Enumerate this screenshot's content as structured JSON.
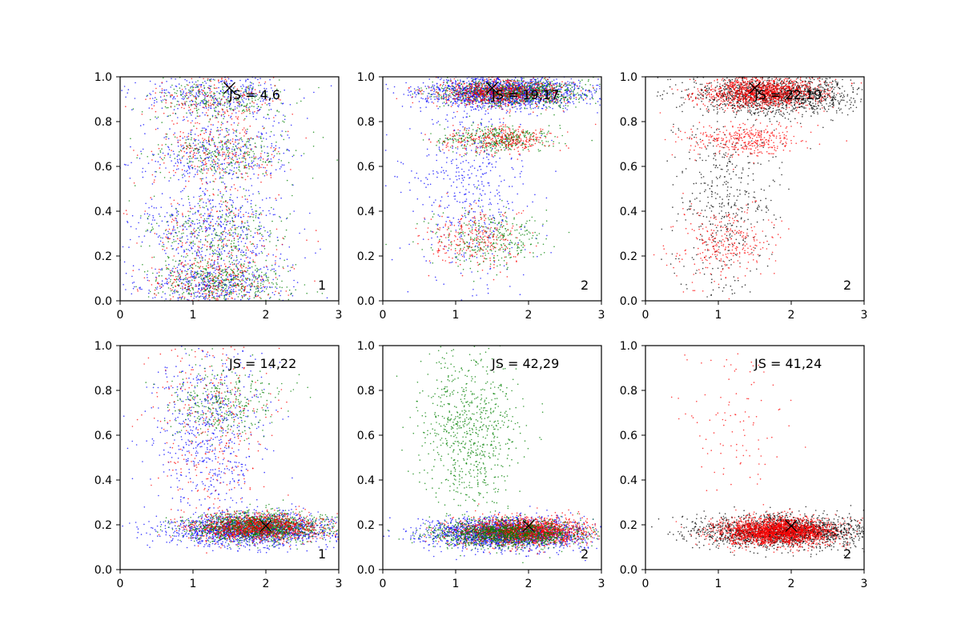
{
  "colors": {
    "blue": "#0000ff",
    "green": "#008000",
    "red": "#ff0000",
    "black": "#000000"
  },
  "chart_data": [
    {
      "type": "scatter",
      "panel": 1,
      "row": 1,
      "col": 1,
      "xlim": [
        0,
        3
      ],
      "ylim": [
        0,
        1.0
      ],
      "x_ticks": [
        "0",
        "1",
        "2",
        "3"
      ],
      "y_ticks": [
        "0.0",
        "0.2",
        "0.4",
        "0.6",
        "0.8",
        "1.0"
      ],
      "annotation": "JS = 4,6",
      "corner_label": "1",
      "marker": {
        "x": 1.5,
        "y": 0.95,
        "symbol": "x"
      },
      "series": [
        {
          "color": "blue",
          "n": 1700,
          "clusters": [
            {
              "cx": 1.3,
              "cy": 0.92,
              "sx": 0.5,
              "sy": 0.06,
              "w": 0.22
            },
            {
              "cx": 1.3,
              "cy": 0.65,
              "sx": 0.5,
              "sy": 0.07,
              "w": 0.22
            },
            {
              "cx": 1.3,
              "cy": 0.32,
              "sx": 0.5,
              "sy": 0.1,
              "w": 0.26
            },
            {
              "cx": 1.3,
              "cy": 0.08,
              "sx": 0.5,
              "sy": 0.06,
              "w": 0.3
            }
          ]
        },
        {
          "color": "green",
          "n": 1300,
          "clusters": [
            {
              "cx": 1.4,
              "cy": 0.9,
              "sx": 0.45,
              "sy": 0.05,
              "w": 0.22
            },
            {
              "cx": 1.4,
              "cy": 0.66,
              "sx": 0.45,
              "sy": 0.06,
              "w": 0.24
            },
            {
              "cx": 1.3,
              "cy": 0.3,
              "sx": 0.45,
              "sy": 0.1,
              "w": 0.22
            },
            {
              "cx": 1.4,
              "cy": 0.08,
              "sx": 0.45,
              "sy": 0.05,
              "w": 0.32
            }
          ]
        },
        {
          "color": "red",
          "n": 900,
          "clusters": [
            {
              "cx": 1.3,
              "cy": 0.9,
              "sx": 0.45,
              "sy": 0.06,
              "w": 0.25
            },
            {
              "cx": 1.3,
              "cy": 0.65,
              "sx": 0.45,
              "sy": 0.07,
              "w": 0.25
            },
            {
              "cx": 1.3,
              "cy": 0.3,
              "sx": 0.45,
              "sy": 0.1,
              "w": 0.2
            },
            {
              "cx": 1.3,
              "cy": 0.08,
              "sx": 0.45,
              "sy": 0.06,
              "w": 0.3
            }
          ]
        }
      ]
    },
    {
      "type": "scatter",
      "panel": 2,
      "row": 1,
      "col": 2,
      "xlim": [
        0,
        3
      ],
      "ylim": [
        0,
        1.0
      ],
      "x_ticks": [
        "0",
        "1",
        "2",
        "3"
      ],
      "y_ticks": [
        "0.0",
        "0.2",
        "0.4",
        "0.6",
        "0.8",
        "1.0"
      ],
      "annotation": "JS = 19,17",
      "corner_label": "2",
      "marker": {
        "x": 1.5,
        "y": 0.95,
        "symbol": "x"
      },
      "series": [
        {
          "color": "blue",
          "n": 2200,
          "clusters": [
            {
              "cx": 1.7,
              "cy": 0.93,
              "sx": 0.55,
              "sy": 0.035,
              "w": 0.8
            },
            {
              "cx": 1.2,
              "cy": 0.5,
              "sx": 0.4,
              "sy": 0.22,
              "w": 0.2
            }
          ]
        },
        {
          "color": "green",
          "n": 1600,
          "clusters": [
            {
              "cx": 1.8,
              "cy": 0.93,
              "sx": 0.5,
              "sy": 0.03,
              "w": 0.55
            },
            {
              "cx": 1.6,
              "cy": 0.72,
              "sx": 0.4,
              "sy": 0.03,
              "w": 0.25
            },
            {
              "cx": 1.5,
              "cy": 0.28,
              "sx": 0.4,
              "sy": 0.06,
              "w": 0.2
            }
          ]
        },
        {
          "color": "red",
          "n": 1300,
          "clusters": [
            {
              "cx": 1.6,
              "cy": 0.93,
              "sx": 0.45,
              "sy": 0.03,
              "w": 0.55
            },
            {
              "cx": 1.6,
              "cy": 0.72,
              "sx": 0.4,
              "sy": 0.03,
              "w": 0.25
            },
            {
              "cx": 1.3,
              "cy": 0.28,
              "sx": 0.35,
              "sy": 0.07,
              "w": 0.2
            }
          ]
        }
      ]
    },
    {
      "type": "scatter",
      "panel": 3,
      "row": 1,
      "col": 3,
      "xlim": [
        0,
        3
      ],
      "ylim": [
        0,
        1.0
      ],
      "x_ticks": [
        "0",
        "1",
        "2",
        "3"
      ],
      "y_ticks": [
        "0.0",
        "0.2",
        "0.4",
        "0.6",
        "0.8",
        "1.0"
      ],
      "annotation": "JS = 22,19",
      "corner_label": "2",
      "marker": {
        "x": 1.5,
        "y": 0.95,
        "symbol": "x"
      },
      "series": [
        {
          "color": "black",
          "n": 1800,
          "clusters": [
            {
              "cx": 1.8,
              "cy": 0.92,
              "sx": 0.6,
              "sy": 0.045,
              "w": 0.75
            },
            {
              "cx": 1.1,
              "cy": 0.45,
              "sx": 0.35,
              "sy": 0.22,
              "w": 0.25
            }
          ]
        },
        {
          "color": "red",
          "n": 1900,
          "clusters": [
            {
              "cx": 1.6,
              "cy": 0.93,
              "sx": 0.4,
              "sy": 0.035,
              "w": 0.65
            },
            {
              "cx": 1.4,
              "cy": 0.72,
              "sx": 0.4,
              "sy": 0.035,
              "w": 0.2
            },
            {
              "cx": 1.1,
              "cy": 0.25,
              "sx": 0.35,
              "sy": 0.08,
              "w": 0.15
            }
          ]
        }
      ]
    },
    {
      "type": "scatter",
      "panel": 4,
      "row": 2,
      "col": 1,
      "xlim": [
        0,
        3
      ],
      "ylim": [
        0,
        1.0
      ],
      "x_ticks": [
        "0",
        "1",
        "2",
        "3"
      ],
      "y_ticks": [
        "0.0",
        "0.2",
        "0.4",
        "0.6",
        "0.8",
        "1.0"
      ],
      "annotation": "JS = 14,22",
      "corner_label": "1",
      "marker": {
        "x": 2.0,
        "y": 0.195,
        "symbol": "x"
      },
      "series": [
        {
          "color": "blue",
          "n": 2200,
          "clusters": [
            {
              "cx": 1.8,
              "cy": 0.18,
              "sx": 0.55,
              "sy": 0.035,
              "w": 0.72
            },
            {
              "cx": 1.2,
              "cy": 0.65,
              "sx": 0.4,
              "sy": 0.2,
              "w": 0.28
            }
          ]
        },
        {
          "color": "green",
          "n": 1800,
          "clusters": [
            {
              "cx": 1.9,
              "cy": 0.19,
              "sx": 0.45,
              "sy": 0.03,
              "w": 0.8
            },
            {
              "cx": 1.4,
              "cy": 0.75,
              "sx": 0.35,
              "sy": 0.08,
              "w": 0.2
            }
          ]
        },
        {
          "color": "red",
          "n": 1300,
          "clusters": [
            {
              "cx": 1.9,
              "cy": 0.19,
              "sx": 0.45,
              "sy": 0.03,
              "w": 0.75
            },
            {
              "cx": 1.2,
              "cy": 0.65,
              "sx": 0.4,
              "sy": 0.2,
              "w": 0.25
            }
          ]
        }
      ]
    },
    {
      "type": "scatter",
      "panel": 5,
      "row": 2,
      "col": 2,
      "xlim": [
        0,
        3
      ],
      "ylim": [
        0,
        1.0
      ],
      "x_ticks": [
        "0",
        "1",
        "2",
        "3"
      ],
      "y_ticks": [
        "0.0",
        "0.2",
        "0.4",
        "0.6",
        "0.8",
        "1.0"
      ],
      "annotation": "JS = 42,29",
      "corner_label": "2",
      "marker": {
        "x": 2.0,
        "y": 0.195,
        "symbol": "x"
      },
      "series": [
        {
          "color": "blue",
          "n": 2000,
          "clusters": [
            {
              "cx": 1.7,
              "cy": 0.16,
              "sx": 0.55,
              "sy": 0.035,
              "w": 1.0
            }
          ]
        },
        {
          "color": "red",
          "n": 1800,
          "clusters": [
            {
              "cx": 1.95,
              "cy": 0.17,
              "sx": 0.45,
              "sy": 0.03,
              "w": 1.0
            }
          ]
        },
        {
          "color": "green",
          "n": 2000,
          "clusters": [
            {
              "cx": 1.7,
              "cy": 0.16,
              "sx": 0.5,
              "sy": 0.03,
              "w": 0.62
            },
            {
              "cx": 1.2,
              "cy": 0.62,
              "sx": 0.35,
              "sy": 0.2,
              "w": 0.38
            }
          ]
        }
      ]
    },
    {
      "type": "scatter",
      "panel": 6,
      "row": 2,
      "col": 3,
      "xlim": [
        0,
        3
      ],
      "ylim": [
        0,
        1.0
      ],
      "x_ticks": [
        "0",
        "1",
        "2",
        "3"
      ],
      "y_ticks": [
        "0.0",
        "0.2",
        "0.4",
        "0.6",
        "0.8",
        "1.0"
      ],
      "annotation": "JS = 41,24",
      "corner_label": "2",
      "marker": {
        "x": 2.0,
        "y": 0.195,
        "symbol": "x"
      },
      "series": [
        {
          "color": "black",
          "n": 2000,
          "clusters": [
            {
              "cx": 1.9,
              "cy": 0.17,
              "sx": 0.6,
              "sy": 0.035,
              "w": 1.0
            }
          ]
        },
        {
          "color": "red",
          "n": 2300,
          "clusters": [
            {
              "cx": 1.8,
              "cy": 0.17,
              "sx": 0.4,
              "sy": 0.03,
              "w": 0.95
            },
            {
              "cx": 1.2,
              "cy": 0.65,
              "sx": 0.35,
              "sy": 0.2,
              "w": 0.05
            }
          ]
        }
      ]
    }
  ]
}
